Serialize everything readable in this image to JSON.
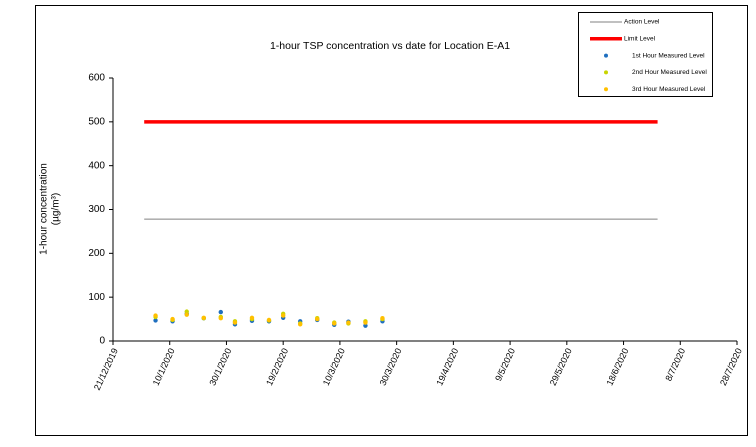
{
  "chart_data": {
    "type": "scatter",
    "title": "1-hour TSP concentration vs date for Location E-A1",
    "y_label": [
      "1-hour concentration",
      "(µg/m³)"
    ],
    "xlim": [
      "2019-12-21",
      "2020-07-28"
    ],
    "xticks": [
      {
        "value": "2019-12-21",
        "label": "21/12/2019"
      },
      {
        "value": "2020-01-10",
        "label": "10/1/2020"
      },
      {
        "value": "2020-01-30",
        "label": "30/1/2020"
      },
      {
        "value": "2020-02-19",
        "label": "19/2/2020"
      },
      {
        "value": "2020-03-10",
        "label": "10/3/2020"
      },
      {
        "value": "2020-03-30",
        "label": "30/3/2020"
      },
      {
        "value": "2020-04-19",
        "label": "19/4/2020"
      },
      {
        "value": "2020-05-09",
        "label": "9/5/2020"
      },
      {
        "value": "2020-05-29",
        "label": "29/5/2020"
      },
      {
        "value": "2020-06-18",
        "label": "18/6/2020"
      },
      {
        "value": "2020-07-08",
        "label": "8/7/2020"
      },
      {
        "value": "2020-07-28",
        "label": "28/7/2020"
      }
    ],
    "ylim": [
      0,
      600
    ],
    "yticks": [
      0,
      100,
      200,
      300,
      400,
      500,
      600
    ],
    "legend": "top-right",
    "series": [
      {
        "name": "Action Level",
        "style": "line",
        "color": "#808080",
        "width": 1,
        "x": [
          "2020-01-01",
          "2020-06-30"
        ],
        "values": [
          278,
          278
        ]
      },
      {
        "name": "Limit Level",
        "style": "line",
        "color": "#ff0000",
        "width": 3.5,
        "x": [
          "2020-01-01",
          "2020-06-30"
        ],
        "values": [
          500,
          500
        ]
      },
      {
        "name": "1st Hour Measured Level",
        "style": "marker",
        "color": "#1f6fbf",
        "x": [
          "2020-01-05",
          "2020-01-11",
          "2020-01-16",
          "2020-01-22",
          "2020-01-28",
          "2020-02-02",
          "2020-02-08",
          "2020-02-14",
          "2020-02-19",
          "2020-02-25",
          "2020-03-02",
          "2020-03-08",
          "2020-03-13",
          "2020-03-19",
          "2020-03-25"
        ],
        "values": [
          47,
          45,
          62,
          52,
          66,
          38,
          46,
          45,
          53,
          45,
          48,
          37,
          44,
          35,
          45
        ]
      },
      {
        "name": "2nd Hour Measured Level",
        "style": "marker",
        "color": "#c8d400",
        "x": [
          "2020-01-05",
          "2020-01-11",
          "2020-01-16",
          "2020-01-22",
          "2020-01-28",
          "2020-02-02",
          "2020-02-08",
          "2020-02-14",
          "2020-02-19",
          "2020-02-25",
          "2020-03-02",
          "2020-03-08",
          "2020-03-13",
          "2020-03-19",
          "2020-03-25"
        ],
        "values": [
          55,
          48,
          67,
          52,
          55,
          45,
          50,
          47,
          62,
          40,
          52,
          42,
          40,
          45,
          50
        ]
      },
      {
        "name": "3rd Hour Measured Level",
        "style": "marker",
        "color": "#ffc000",
        "x": [
          "2020-01-05",
          "2020-01-11",
          "2020-01-16",
          "2020-01-22",
          "2020-01-28",
          "2020-02-02",
          "2020-02-08",
          "2020-02-14",
          "2020-02-19",
          "2020-02-25",
          "2020-03-02",
          "2020-03-08",
          "2020-03-13",
          "2020-03-19",
          "2020-03-25"
        ],
        "values": [
          58,
          50,
          60,
          53,
          52,
          42,
          53,
          48,
          58,
          38,
          50,
          40,
          42,
          42,
          52
        ]
      }
    ]
  }
}
